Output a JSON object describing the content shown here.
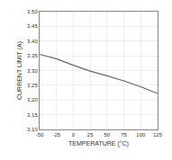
{
  "chart_data": {
    "type": "line",
    "x": [
      -50,
      -25,
      0,
      25,
      50,
      75,
      100,
      125
    ],
    "values": [
      3.355,
      3.34,
      3.318,
      3.298,
      3.282,
      3.265,
      3.245,
      3.222
    ],
    "color": "#666666",
    "xlabel": "TEMPERATURE (°C)",
    "ylabel": "CURRENT LIMIT (A)",
    "xlim": [
      -50,
      125
    ],
    "ylim": [
      3.1,
      3.5
    ],
    "xticks": [
      -50,
      -25,
      0,
      25,
      50,
      75,
      100,
      125
    ],
    "yticks": [
      {
        "value": 3.1,
        "label": "3.10"
      },
      3.15,
      {
        "value": 3.2,
        "label": "3.20"
      },
      3.25,
      {
        "value": 3.3,
        "label": "3.30"
      },
      3.35,
      {
        "value": 3.4,
        "label": "3.40"
      },
      3.45,
      {
        "value": 3.5,
        "label": "3.50"
      }
    ],
    "grid": true
  }
}
